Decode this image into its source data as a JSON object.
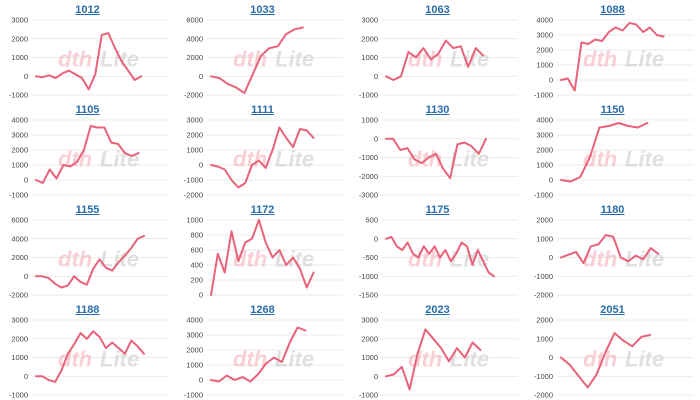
{
  "colors": {
    "series": "#e8637a",
    "title": "#2a6ca8",
    "grid": "#e4e4e4"
  },
  "watermark": {
    "part1": "dth",
    "part2": "Lite"
  },
  "chart_data": [
    {
      "type": "line",
      "title": "1012",
      "yticks": [
        3000,
        2000,
        1000,
        0,
        -1000
      ],
      "ylim": [
        -1000,
        3000
      ],
      "grid": true,
      "series": [
        {
          "values": [
            0,
            -50,
            50,
            -100,
            150,
            300,
            100,
            -100,
            -700,
            100,
            2200,
            2300,
            1500,
            800,
            300,
            -200,
            0
          ]
        }
      ]
    },
    {
      "type": "line",
      "title": "1033",
      "yticks": [
        6000,
        4000,
        2000,
        0,
        -2000
      ],
      "ylim": [
        -2000,
        6000
      ],
      "grid": true,
      "series": [
        {
          "values": [
            0,
            -200,
            -800,
            -1200,
            -1800,
            200,
            2200,
            3000,
            3200,
            4500,
            5000,
            5200
          ]
        }
      ]
    },
    {
      "type": "line",
      "title": "1063",
      "yticks": [
        3000,
        2000,
        1000,
        0,
        -1000
      ],
      "ylim": [
        -1000,
        3000
      ],
      "grid": true,
      "series": [
        {
          "values": [
            0,
            -200,
            0,
            1300,
            1000,
            1500,
            900,
            1200,
            1900,
            1500,
            1600,
            500,
            1500,
            1100
          ]
        }
      ]
    },
    {
      "type": "line",
      "title": "1088",
      "yticks": [
        4000,
        3000,
        2000,
        1000,
        0,
        -1000
      ],
      "ylim": [
        -1000,
        4000
      ],
      "grid": true,
      "series": [
        {
          "values": [
            0,
            100,
            -700,
            2500,
            2400,
            2700,
            2600,
            3200,
            3500,
            3300,
            3800,
            3700,
            3200,
            3500,
            3000,
            2900
          ]
        }
      ]
    },
    {
      "type": "line",
      "title": "1105",
      "yticks": [
        4000,
        3000,
        2000,
        1000,
        0,
        -1000
      ],
      "ylim": [
        -1000,
        4000
      ],
      "grid": true,
      "series": [
        {
          "values": [
            0,
            -200,
            700,
            100,
            1000,
            900,
            1200,
            2000,
            3600,
            3500,
            3500,
            2500,
            2400,
            1800,
            1600,
            1800
          ]
        }
      ]
    },
    {
      "type": "line",
      "title": "1111",
      "yticks": [
        3000,
        2000,
        1000,
        0,
        -1000,
        -2000
      ],
      "ylim": [
        -2000,
        3000
      ],
      "grid": true,
      "series": [
        {
          "values": [
            0,
            -100,
            -300,
            -1000,
            -1500,
            -1200,
            0,
            300,
            -200,
            1000,
            2500,
            1800,
            1200,
            2400,
            2300,
            1800
          ]
        }
      ]
    },
    {
      "type": "line",
      "title": "1130",
      "yticks": [
        1000,
        0,
        -1000,
        -2000,
        -3000
      ],
      "ylim": [
        -3000,
        1000
      ],
      "grid": true,
      "series": [
        {
          "values": [
            0,
            0,
            -600,
            -500,
            -1100,
            -1300,
            -1000,
            -800,
            -1600,
            -2100,
            -300,
            -200,
            -400,
            -800,
            0
          ]
        }
      ]
    },
    {
      "type": "line",
      "title": "1150",
      "yticks": [
        4000,
        3000,
        2000,
        1000,
        0,
        -1000
      ],
      "ylim": [
        -1000,
        4000
      ],
      "grid": true,
      "series": [
        {
          "values": [
            0,
            -100,
            200,
            1500,
            3500,
            3600,
            3800,
            3600,
            3500,
            3800
          ]
        }
      ]
    },
    {
      "type": "line",
      "title": "1155",
      "yticks": [
        6000,
        4000,
        2000,
        0,
        -2000
      ],
      "ylim": [
        -2000,
        6000
      ],
      "grid": true,
      "series": [
        {
          "values": [
            0,
            0,
            -200,
            -800,
            -1200,
            -1000,
            0,
            -600,
            -900,
            800,
            1800,
            900,
            600,
            1500,
            2200,
            3000,
            4000,
            4300
          ]
        }
      ]
    },
    {
      "type": "line",
      "title": "1172",
      "yticks": [
        1000,
        800,
        600,
        400,
        200,
        0
      ],
      "ylim": [
        0,
        1000
      ],
      "grid": true,
      "series": [
        {
          "values": [
            0,
            550,
            300,
            850,
            450,
            700,
            750,
            1000,
            700,
            500,
            600,
            400,
            500,
            350,
            100,
            300
          ]
        }
      ]
    },
    {
      "type": "line",
      "title": "1175",
      "yticks": [
        500,
        0,
        -500,
        -1000,
        -1500
      ],
      "ylim": [
        -1500,
        500
      ],
      "grid": true,
      "series": [
        {
          "values": [
            0,
            50,
            -200,
            -300,
            -100,
            -400,
            -500,
            -200,
            -400,
            -200,
            -500,
            -300,
            -600,
            -400,
            -100,
            -200,
            -700,
            -300,
            -600,
            -900,
            -1000
          ]
        }
      ]
    },
    {
      "type": "line",
      "title": "1180",
      "yticks": [
        2000,
        1000,
        0,
        -1000,
        -2000
      ],
      "ylim": [
        -2000,
        2000
      ],
      "grid": true,
      "series": [
        {
          "values": [
            0,
            150,
            300,
            -300,
            600,
            700,
            1200,
            1100,
            0,
            -200,
            100,
            -100,
            500,
            200
          ]
        }
      ]
    },
    {
      "type": "line",
      "title": "1188",
      "yticks": [
        3000,
        2000,
        1000,
        0,
        -1000
      ],
      "ylim": [
        -1000,
        3000
      ],
      "grid": true,
      "series": [
        {
          "values": [
            0,
            0,
            -200,
            -300,
            300,
            1200,
            1700,
            2300,
            2000,
            2400,
            2100,
            1500,
            1800,
            1500,
            1200,
            1900,
            1600,
            1200
          ]
        }
      ]
    },
    {
      "type": "line",
      "title": "1268",
      "yticks": [
        4000,
        3000,
        2000,
        1000,
        0,
        -1000
      ],
      "ylim": [
        -1000,
        4000
      ],
      "grid": true,
      "series": [
        {
          "values": [
            0,
            -100,
            300,
            0,
            200,
            -100,
            400,
            1100,
            1500,
            1200,
            2500,
            3500,
            3300
          ]
        }
      ]
    },
    {
      "type": "line",
      "title": "2023",
      "yticks": [
        3000,
        2000,
        1000,
        0,
        -1000
      ],
      "ylim": [
        -1000,
        3000
      ],
      "grid": true,
      "series": [
        {
          "values": [
            0,
            100,
            500,
            -700,
            1200,
            2500,
            2000,
            1500,
            800,
            1500,
            1000,
            1800,
            1400
          ]
        }
      ]
    },
    {
      "type": "line",
      "title": "2051",
      "yticks": [
        2000,
        1000,
        0,
        -1000,
        -2000
      ],
      "ylim": [
        -2000,
        2000
      ],
      "grid": true,
      "series": [
        {
          "values": [
            0,
            -400,
            -1000,
            -1600,
            -900,
            300,
            1300,
            900,
            600,
            1100,
            1200
          ]
        }
      ]
    }
  ]
}
